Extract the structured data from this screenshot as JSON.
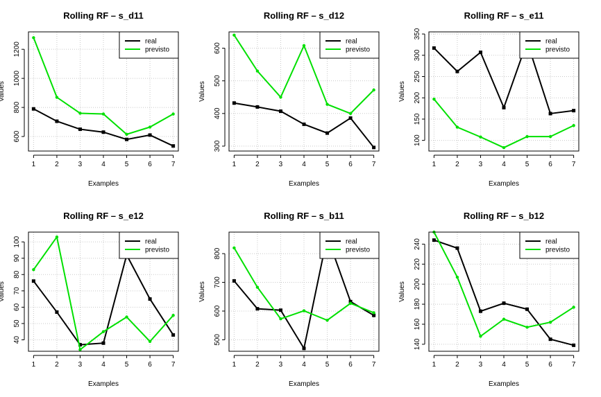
{
  "colors": {
    "real": "#000000",
    "previsto": "#00e000",
    "grid": "#c8c8c8"
  },
  "chart_data": [
    {
      "type": "line",
      "title": "Rolling RF – s_d11",
      "xlabel": "Examples",
      "ylabel": "Values",
      "x": [
        1,
        2,
        3,
        4,
        5,
        6,
        7
      ],
      "xticks": [
        1,
        2,
        3,
        4,
        5,
        6,
        7
      ],
      "yticks": [
        600,
        800,
        1000,
        1200
      ],
      "ylim": [
        500,
        1320
      ],
      "grid": true,
      "legend": "top-right",
      "series": [
        {
          "name": "real",
          "values": [
            790,
            705,
            650,
            630,
            580,
            610,
            535
          ]
        },
        {
          "name": "previsto",
          "values": [
            1280,
            870,
            760,
            755,
            615,
            665,
            755
          ]
        }
      ]
    },
    {
      "type": "line",
      "title": "Rolling RF – s_d12",
      "xlabel": "Examples",
      "ylabel": "Values",
      "x": [
        1,
        2,
        3,
        4,
        5,
        6,
        7
      ],
      "xticks": [
        1,
        2,
        3,
        4,
        5,
        6,
        7
      ],
      "yticks": [
        300,
        400,
        500,
        600
      ],
      "ylim": [
        285,
        650
      ],
      "grid": true,
      "legend": "top-right",
      "series": [
        {
          "name": "real",
          "values": [
            432,
            420,
            407,
            367,
            340,
            386,
            296
          ]
        },
        {
          "name": "previsto",
          "values": [
            640,
            530,
            450,
            608,
            428,
            400,
            472
          ]
        }
      ]
    },
    {
      "type": "line",
      "title": "Rolling RF – s_e11",
      "xlabel": "Examples",
      "ylabel": "Values",
      "x": [
        1,
        2,
        3,
        4,
        5,
        6,
        7
      ],
      "xticks": [
        1,
        2,
        3,
        4,
        5,
        6,
        7
      ],
      "yticks": [
        100,
        150,
        200,
        250,
        300,
        350
      ],
      "ylim": [
        75,
        355
      ],
      "grid": true,
      "legend": "top-right",
      "series": [
        {
          "name": "real",
          "values": [
            317,
            262,
            307,
            177,
            332,
            163,
            170
          ]
        },
        {
          "name": "previsto",
          "values": [
            197,
            131,
            108,
            83,
            109,
            109,
            135
          ]
        }
      ]
    },
    {
      "type": "line",
      "title": "Rolling RF – s_e12",
      "xlabel": "Examples",
      "ylabel": "Values",
      "x": [
        1,
        2,
        3,
        4,
        5,
        6,
        7
      ],
      "xticks": [
        1,
        2,
        3,
        4,
        5,
        6,
        7
      ],
      "yticks": [
        40,
        50,
        60,
        70,
        80,
        90,
        100
      ],
      "ylim": [
        33,
        106
      ],
      "grid": true,
      "legend": "top-right",
      "series": [
        {
          "name": "real",
          "values": [
            76,
            57,
            37,
            38,
            92,
            65,
            43
          ]
        },
        {
          "name": "previsto",
          "values": [
            83,
            103,
            34,
            45,
            54,
            39,
            55
          ]
        }
      ]
    },
    {
      "type": "line",
      "title": "Rolling RF – s_b11",
      "xlabel": "Examples",
      "ylabel": "Values",
      "x": [
        1,
        2,
        3,
        4,
        5,
        6,
        7
      ],
      "xticks": [
        1,
        2,
        3,
        4,
        5,
        6,
        7
      ],
      "yticks": [
        500,
        600,
        700,
        800
      ],
      "ylim": [
        460,
        875
      ],
      "grid": true,
      "legend": "top-right",
      "series": [
        {
          "name": "real",
          "values": [
            705,
            608,
            603,
            470,
            860,
            633,
            585
          ]
        },
        {
          "name": "previsto",
          "values": [
            820,
            683,
            573,
            601,
            568,
            627,
            594
          ]
        }
      ]
    },
    {
      "type": "line",
      "title": "Rolling RF – s_b12",
      "xlabel": "Examples",
      "ylabel": "Values",
      "x": [
        1,
        2,
        3,
        4,
        5,
        6,
        7
      ],
      "xticks": [
        1,
        2,
        3,
        4,
        5,
        6,
        7
      ],
      "yticks": [
        140,
        160,
        180,
        200,
        220,
        240
      ],
      "ylim": [
        133,
        252
      ],
      "grid": true,
      "legend": "top-right",
      "series": [
        {
          "name": "real",
          "values": [
            244,
            236,
            173,
            181,
            175,
            145,
            139
          ]
        },
        {
          "name": "previsto",
          "values": [
            252,
            207,
            148,
            165,
            157,
            162,
            177
          ]
        }
      ]
    }
  ]
}
